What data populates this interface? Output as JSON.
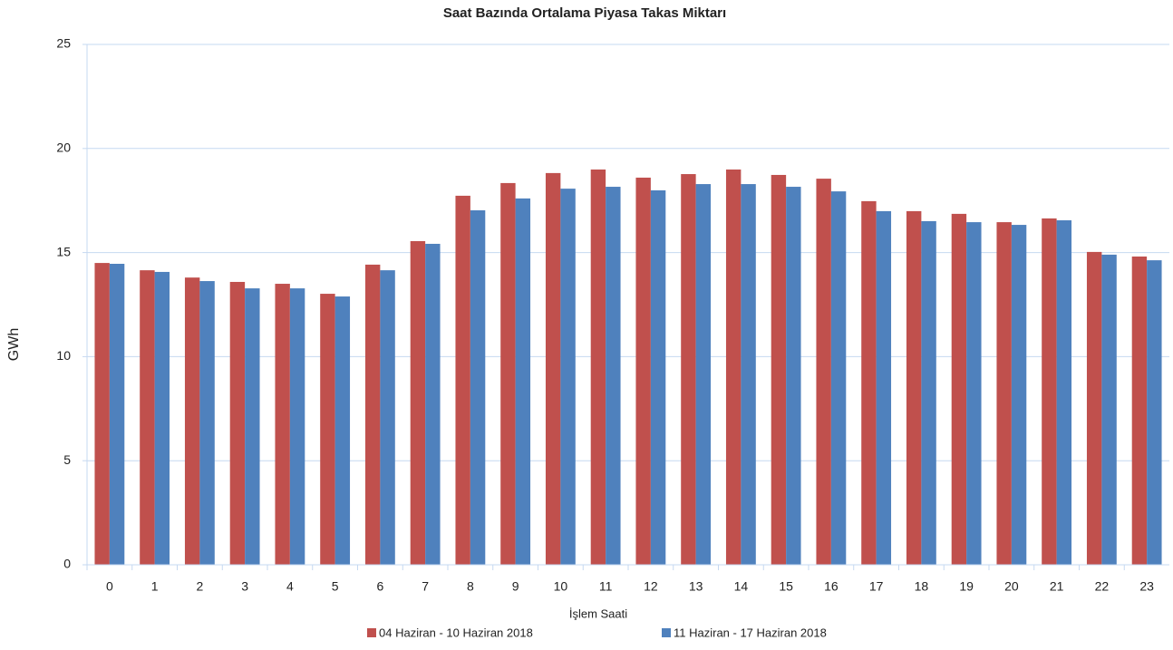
{
  "chart_data": {
    "type": "bar",
    "title": "Saat Bazında Ortalama Piyasa Takas Miktarı",
    "x_label": "İşlem Saati",
    "y_label": "GWh",
    "categories": [
      "0",
      "1",
      "2",
      "3",
      "4",
      "5",
      "6",
      "7",
      "8",
      "9",
      "10",
      "11",
      "12",
      "13",
      "14",
      "15",
      "16",
      "17",
      "18",
      "19",
      "20",
      "21",
      "22",
      "23"
    ],
    "series": [
      {
        "name": "04 Haziran - 10 Haziran 2018",
        "color": "#c0504d",
        "values": [
          14.5,
          14.15,
          13.8,
          13.59,
          13.5,
          13.02,
          14.42,
          15.55,
          17.73,
          18.34,
          18.82,
          18.99,
          18.6,
          18.77,
          18.99,
          18.73,
          18.55,
          17.47,
          16.99,
          16.86,
          16.46,
          16.64,
          15.03,
          14.81
        ]
      },
      {
        "name": "11 Haziran - 17 Haziran 2018",
        "color": "#4f81bd",
        "values": [
          14.46,
          14.07,
          13.63,
          13.28,
          13.28,
          12.89,
          14.15,
          15.42,
          17.03,
          17.6,
          18.07,
          18.16,
          17.99,
          18.29,
          18.29,
          18.16,
          17.94,
          16.99,
          16.51,
          16.46,
          16.33,
          16.55,
          14.9,
          14.63
        ]
      }
    ],
    "ylim": [
      0,
      25
    ],
    "yticks": [
      0,
      5,
      10,
      15,
      20,
      25
    ],
    "grid": true,
    "legend": "bottom"
  }
}
